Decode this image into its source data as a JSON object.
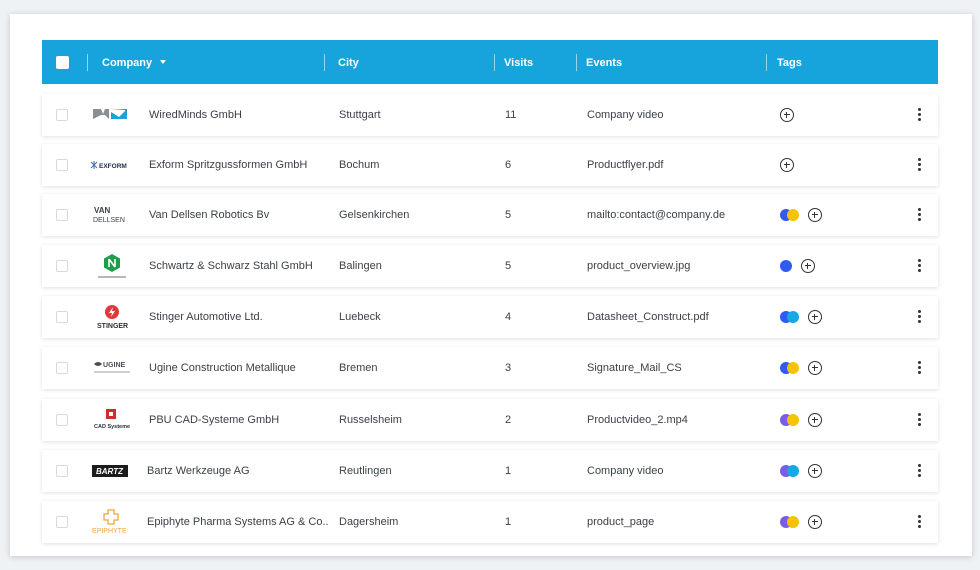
{
  "header": {
    "company": "Company",
    "city": "City",
    "visits": "Visits",
    "events": "Events",
    "tags": "Tags"
  },
  "colors": {
    "header_bg": "#17a3dc",
    "purple": "#7b5ce6",
    "yellow": "#f5c300",
    "blue": "#2f5bf0",
    "cyan": "#14a8e6"
  },
  "rows": [
    {
      "company": "WiredMinds GmbH",
      "city": "Stuttgart",
      "visits": "11",
      "event": "Company video",
      "logo": "wiredminds-logo",
      "tags": []
    },
    {
      "company": "Exform Spritzgussformen GmbH",
      "city": "Bochum",
      "visits": "6",
      "event": "Productflyer.pdf",
      "logo": "exform-logo",
      "logo_text": "EXFORM",
      "tags": []
    },
    {
      "company": "Van Dellsen Robotics Bv",
      "city": "Gelsenkirchen",
      "visits": "5",
      "event": "mailto:contact@company.de",
      "logo": "vandellsen-logo",
      "logo_text": "VAN DELLSEN",
      "tags": [
        "blue",
        "yellow"
      ]
    },
    {
      "company": "Schwartz & Schwarz Stahl GmbH",
      "city": "Balingen",
      "visits": "5",
      "event": "product_overview.jpg",
      "logo": "schwartz-logo",
      "tags": [
        "blue"
      ]
    },
    {
      "company": "Stinger Automotive Ltd.",
      "city": "Luebeck",
      "visits": "4",
      "event": "Datasheet_Construct.pdf",
      "logo": "stinger-logo",
      "logo_text": "STINGER",
      "tags": [
        "blue",
        "cyan"
      ]
    },
    {
      "company": "Ugine Construction Metallique",
      "city": "Bremen",
      "visits": "3",
      "event": "Signature_Mail_CS",
      "logo": "ugine-logo",
      "logo_text": "UGINE",
      "tags": [
        "blue",
        "yellow"
      ]
    },
    {
      "company": "PBU CAD-Systeme GmbH",
      "city": "Russelsheim",
      "visits": "2",
      "event": "Productvideo_2.mp4",
      "logo": "cad-logo",
      "logo_text": "CAD Systeme",
      "tags": [
        "purple",
        "yellow"
      ]
    },
    {
      "company": "Bartz Werkzeuge AG",
      "city": "Reutlingen",
      "visits": "1",
      "event": "Company video",
      "logo": "bartz-logo",
      "logo_text": "BARTZ",
      "tags": [
        "purple",
        "cyan"
      ]
    },
    {
      "company": "Epiphyte Pharma Systems AG & Co..",
      "city": "Dagersheim",
      "visits": "1",
      "event": "product_page",
      "logo": "epiphyte-logo",
      "logo_text": "EPIPHYTE",
      "tags": [
        "purple",
        "yellow"
      ]
    }
  ]
}
